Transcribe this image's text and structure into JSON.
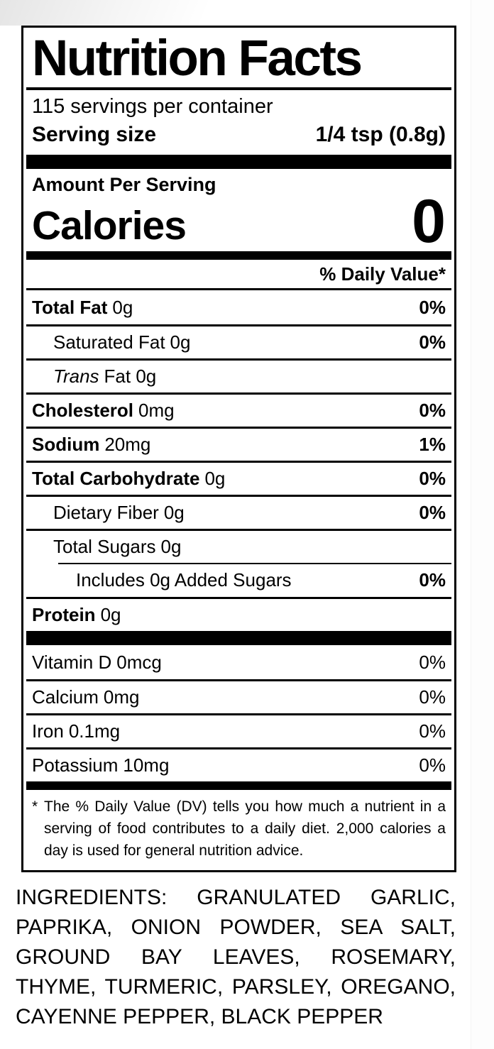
{
  "page": {
    "background": "#ffffff",
    "text_color": "#000000"
  },
  "label": {
    "title": "Nutrition Facts",
    "servings_per_container": "115 servings per container",
    "serving_size_label": "Serving size",
    "serving_size_value": "1/4 tsp (0.8g)",
    "amount_per_serving": "Amount Per Serving",
    "calories_label": "Calories",
    "calories_value": "0",
    "daily_value_header": "% Daily Value*",
    "nutrients": [
      {
        "name": "Total Fat",
        "amount": "0g",
        "dv": "0%"
      },
      {
        "name": "Saturated Fat",
        "amount": "0g",
        "dv": "0%"
      },
      {
        "name": "Trans",
        "amount": "Fat 0g",
        "dv": ""
      },
      {
        "name": "Cholesterol",
        "amount": "0mg",
        "dv": "0%"
      },
      {
        "name": "Sodium",
        "amount": "20mg",
        "dv": "1%"
      },
      {
        "name": "Total Carbohydrate",
        "amount": "0g",
        "dv": "0%"
      },
      {
        "name": "Dietary Fiber",
        "amount": "0g",
        "dv": "0%"
      },
      {
        "name": "Total Sugars",
        "amount": "0g",
        "dv": ""
      },
      {
        "name": "Includes 0g Added Sugars",
        "amount": "",
        "dv": "0%"
      },
      {
        "name": "Protein",
        "amount": "0g",
        "dv": ""
      }
    ],
    "vitamins": [
      {
        "name": "Vitamin D",
        "amount": "0mcg",
        "dv": "0%"
      },
      {
        "name": "Calcium",
        "amount": "0mg",
        "dv": "0%"
      },
      {
        "name": "Iron",
        "amount": "0.1mg",
        "dv": "0%"
      },
      {
        "name": "Potassium",
        "amount": "10mg",
        "dv": "0%"
      }
    ],
    "footnote_marker": "*",
    "footnote": "The % Daily Value (DV) tells you how much a nutrient in a serving of food contributes to a daily diet. 2,000 calories a day is used for general nutrition advice."
  },
  "ingredients": "INGREDIENTS: GRANULATED GARLIC, PAPRIKA, ONION POWDER, SEA SALT, GROUND BAY LEAVES, ROSEMARY, THYME, TURMERIC, PARSLEY, OREGANO, CAYENNE PEPPER, BLACK PEPPER"
}
